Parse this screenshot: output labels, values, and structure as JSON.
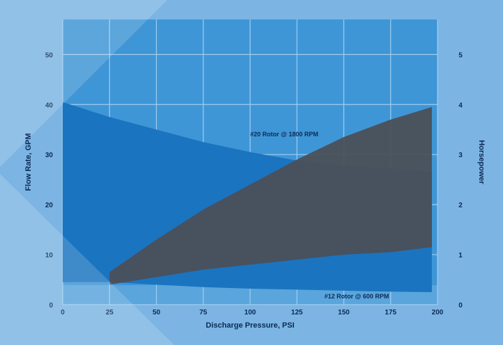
{
  "chart_data": {
    "type": "area",
    "title": "",
    "xlabel": "Discharge Pressure, PSI",
    "ylabel_left": "Flow Rate, GPM",
    "ylabel_right": "Horsepower",
    "xlim": [
      0,
      200
    ],
    "ylim_left": [
      0,
      57
    ],
    "ylim_right": [
      0,
      5.7
    ],
    "x_ticks": [
      "0",
      "25",
      "50",
      "75",
      "100",
      "125",
      "150",
      "175",
      "200"
    ],
    "y_left_ticks": [
      "0",
      "10",
      "20",
      "30",
      "40",
      "50"
    ],
    "y_right_ticks": [
      "0",
      "1",
      "2",
      "3",
      "4",
      "5"
    ],
    "grid": true,
    "series": [
      {
        "name": "",
        "axis": "left",
        "x": [
          0,
          25,
          50,
          75,
          100,
          125,
          150,
          175,
          197
        ],
        "y_upper": [
          40.5,
          37.5,
          35,
          32.5,
          30.5,
          28.8,
          27.8,
          27.2,
          26.5
        ],
        "y_lower": [
          4.5,
          4.5,
          4,
          3.5,
          3.2,
          3,
          2.8,
          2.6,
          2.5
        ],
        "color": "#1b74bf"
      },
      {
        "name": "",
        "axis": "right",
        "x": [
          25,
          50,
          75,
          100,
          125,
          150,
          175,
          197
        ],
        "y_upper": [
          0.65,
          1.3,
          1.9,
          2.4,
          2.9,
          3.35,
          3.7,
          3.95
        ],
        "y_lower": [
          0.4,
          0.55,
          0.7,
          0.8,
          0.9,
          1.0,
          1.05,
          1.15
        ],
        "color": "#4b4f56"
      }
    ],
    "annotations": [
      {
        "text": "#20 Rotor @ 1800 RPM",
        "x": 143,
        "y": 34
      },
      {
        "text": "#12 Rotor @ 600 RPM",
        "x": 161,
        "y": 0.5
      }
    ]
  }
}
